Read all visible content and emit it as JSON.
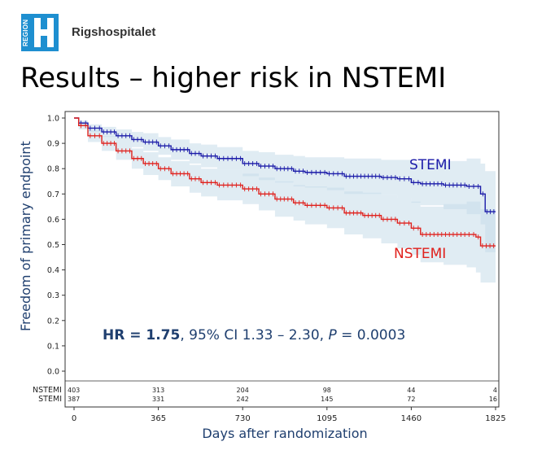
{
  "header": {
    "logo_text": "REGION",
    "hospital_name": "Rigshospitalet",
    "title": "Results – higher risk in NSTEMI"
  },
  "annotation": {
    "hr_label": "HR = 1.75",
    "ci_text": ", 95% CI 1.33 – 2.30, ",
    "p_symbol": "P",
    "p_value": " = 0.0003"
  },
  "colors": {
    "stemi": "#1a1aa8",
    "nstemi": "#e0201c",
    "band": "#c7dcea",
    "axis": "#1f3f6f"
  },
  "chart_data": {
    "type": "line",
    "subtype": "kaplan-meier",
    "title": "",
    "xlabel": "Days after randomization",
    "ylabel": "Freedom of primary endpoint",
    "xlim": [
      0,
      1825
    ],
    "ylim": [
      0,
      1.0
    ],
    "xticks": [
      0,
      365,
      730,
      1095,
      1460,
      1825
    ],
    "yticks": [
      "0.0",
      "0.1",
      "0.2",
      "0.3",
      "0.4",
      "0.5",
      "0.6",
      "0.7",
      "0.8",
      "0.9",
      "1.0"
    ],
    "grid": false,
    "series": [
      {
        "name": "STEMI",
        "color": "#1a1aa8",
        "x": [
          0,
          20,
          60,
          120,
          182,
          250,
          300,
          365,
          420,
          500,
          550,
          620,
          730,
          800,
          870,
          950,
          1000,
          1095,
          1170,
          1250,
          1330,
          1400,
          1460,
          1500,
          1600,
          1700,
          1760,
          1780,
          1825
        ],
        "y": [
          1.0,
          0.98,
          0.96,
          0.945,
          0.93,
          0.915,
          0.905,
          0.89,
          0.875,
          0.86,
          0.85,
          0.84,
          0.82,
          0.81,
          0.8,
          0.79,
          0.785,
          0.78,
          0.77,
          0.77,
          0.765,
          0.76,
          0.745,
          0.74,
          0.735,
          0.73,
          0.7,
          0.63,
          0.63
        ],
        "ci_lower": [
          1.0,
          0.97,
          0.945,
          0.925,
          0.905,
          0.885,
          0.87,
          0.855,
          0.835,
          0.82,
          0.805,
          0.795,
          0.77,
          0.755,
          0.745,
          0.73,
          0.725,
          0.715,
          0.7,
          0.7,
          0.695,
          0.685,
          0.665,
          0.655,
          0.64,
          0.62,
          0.58,
          0.47,
          0.47
        ],
        "ci_upper": [
          1.0,
          0.99,
          0.975,
          0.965,
          0.955,
          0.945,
          0.94,
          0.925,
          0.915,
          0.9,
          0.895,
          0.885,
          0.87,
          0.865,
          0.855,
          0.85,
          0.845,
          0.845,
          0.84,
          0.84,
          0.835,
          0.835,
          0.825,
          0.825,
          0.83,
          0.84,
          0.82,
          0.79,
          0.79
        ]
      },
      {
        "name": "NSTEMI",
        "color": "#e0201c",
        "x": [
          0,
          20,
          60,
          120,
          182,
          250,
          300,
          365,
          420,
          500,
          550,
          620,
          730,
          800,
          870,
          950,
          1000,
          1095,
          1170,
          1250,
          1330,
          1400,
          1460,
          1500,
          1600,
          1700,
          1740,
          1760,
          1825
        ],
        "y": [
          1.0,
          0.97,
          0.93,
          0.9,
          0.87,
          0.84,
          0.82,
          0.8,
          0.78,
          0.76,
          0.745,
          0.735,
          0.72,
          0.7,
          0.68,
          0.665,
          0.655,
          0.645,
          0.625,
          0.615,
          0.6,
          0.585,
          0.565,
          0.54,
          0.54,
          0.54,
          0.53,
          0.495,
          0.495
        ],
        "ci_lower": [
          1.0,
          0.955,
          0.905,
          0.87,
          0.835,
          0.8,
          0.775,
          0.755,
          0.73,
          0.705,
          0.69,
          0.675,
          0.66,
          0.635,
          0.61,
          0.595,
          0.58,
          0.565,
          0.54,
          0.525,
          0.505,
          0.485,
          0.46,
          0.43,
          0.42,
          0.41,
          0.39,
          0.35,
          0.35
        ],
        "ci_upper": [
          1.0,
          0.985,
          0.955,
          0.93,
          0.905,
          0.88,
          0.865,
          0.845,
          0.83,
          0.815,
          0.8,
          0.795,
          0.78,
          0.765,
          0.75,
          0.735,
          0.73,
          0.725,
          0.71,
          0.705,
          0.695,
          0.685,
          0.67,
          0.65,
          0.66,
          0.67,
          0.67,
          0.64,
          0.64
        ]
      }
    ],
    "number_at_risk": {
      "x": [
        0,
        365,
        730,
        1095,
        1460,
        1825
      ],
      "rows": [
        {
          "name": "NSTEMI",
          "values": [
            "403",
            "313",
            "204",
            "98",
            "44",
            "4"
          ]
        },
        {
          "name": "STEMI",
          "values": [
            "387",
            "331",
            "242",
            "145",
            "72",
            "16"
          ]
        }
      ]
    }
  }
}
